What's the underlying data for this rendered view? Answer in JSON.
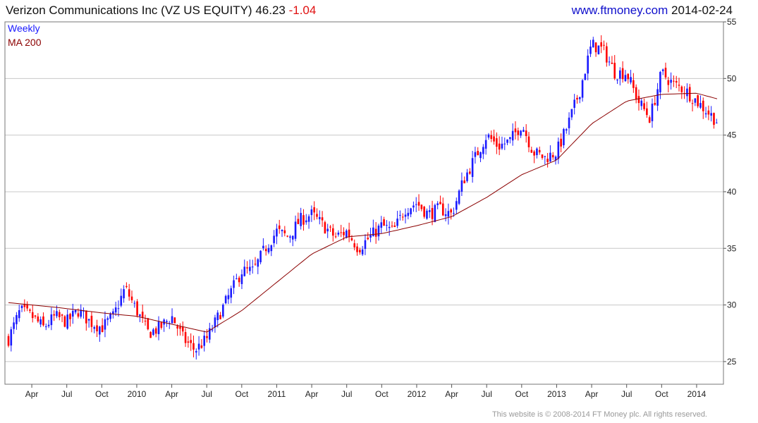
{
  "header": {
    "company": "Verizon Communications Inc",
    "ticker": "(VZ US EQUITY)",
    "price": "46.23",
    "change": "-1.04",
    "site": "www.ftmoney.com",
    "date": "2014-02-24"
  },
  "footer": "This website is © 2008-2014 FT Money plc. All rights reserved.",
  "colors": {
    "up": "#1a1aff",
    "down": "#ff0000",
    "ma": "#8b0000",
    "grid": "#c8c8c8"
  },
  "chart_data": {
    "type": "candlestick",
    "interval": "Weekly",
    "legend": [
      "Weekly",
      "MA 200"
    ],
    "y_axis": {
      "position": "right",
      "min": 23,
      "max": 55,
      "ticks": [
        25,
        30,
        35,
        40,
        45,
        50,
        55
      ]
    },
    "x_ticks": [
      "Apr",
      "Jul",
      "Oct",
      "2010",
      "Apr",
      "Jul",
      "Oct",
      "2011",
      "Apr",
      "Jul",
      "Oct",
      "2012",
      "Apr",
      "Jul",
      "Oct",
      "2013",
      "Apr",
      "Jul",
      "Oct",
      "2014"
    ],
    "x_range": [
      "2009-02",
      "2014-02-24"
    ],
    "close_anchors": [
      [
        "2009-02",
        27.0
      ],
      [
        "2009-03",
        29.5
      ],
      [
        "2009-04",
        29.0
      ],
      [
        "2009-05",
        28.0
      ],
      [
        "2009-06",
        29.0
      ],
      [
        "2009-07",
        28.5
      ],
      [
        "2009-08",
        29.5
      ],
      [
        "2009-09",
        28.5
      ],
      [
        "2009-10",
        28.0
      ],
      [
        "2009-11",
        29.0
      ],
      [
        "2009-12",
        31.5
      ],
      [
        "2010-01",
        29.5
      ],
      [
        "2010-02",
        27.5
      ],
      [
        "2010-03",
        28.0
      ],
      [
        "2010-04",
        29.0
      ],
      [
        "2010-05",
        27.0
      ],
      [
        "2010-06",
        26.0
      ],
      [
        "2010-07",
        27.0
      ],
      [
        "2010-08",
        29.0
      ],
      [
        "2010-09",
        31.0
      ],
      [
        "2010-10",
        33.0
      ],
      [
        "2010-11",
        33.0
      ],
      [
        "2010-12",
        35.0
      ],
      [
        "2011-01",
        36.5
      ],
      [
        "2011-02",
        36.0
      ],
      [
        "2011-03",
        37.5
      ],
      [
        "2011-04",
        38.0
      ],
      [
        "2011-05",
        37.0
      ],
      [
        "2011-06",
        36.0
      ],
      [
        "2011-07",
        36.5
      ],
      [
        "2011-08",
        35.0
      ],
      [
        "2011-09",
        36.0
      ],
      [
        "2011-10",
        37.0
      ],
      [
        "2011-11",
        36.5
      ],
      [
        "2011-12",
        38.5
      ],
      [
        "2012-01",
        39.0
      ],
      [
        "2012-02",
        38.0
      ],
      [
        "2012-03",
        38.5
      ],
      [
        "2012-04",
        38.0
      ],
      [
        "2012-05",
        41.0
      ],
      [
        "2012-06",
        43.0
      ],
      [
        "2012-07",
        45.0
      ],
      [
        "2012-08",
        44.0
      ],
      [
        "2012-09",
        44.5
      ],
      [
        "2012-10",
        46.0
      ],
      [
        "2012-11",
        43.5
      ],
      [
        "2012-12",
        43.0
      ],
      [
        "2013-01",
        43.5
      ],
      [
        "2013-02",
        46.0
      ],
      [
        "2013-03",
        49.0
      ],
      [
        "2013-04",
        53.0
      ],
      [
        "2013-05",
        52.5
      ],
      [
        "2013-06",
        50.5
      ],
      [
        "2013-07",
        50.5
      ],
      [
        "2013-08",
        48.0
      ],
      [
        "2013-09",
        46.5
      ],
      [
        "2013-10",
        50.5
      ],
      [
        "2013-11",
        49.5
      ],
      [
        "2013-12",
        49.0
      ],
      [
        "2014-01",
        48.0
      ],
      [
        "2014-02-24",
        46.23
      ]
    ],
    "ma200_anchors": [
      [
        "2009-02",
        30.2
      ],
      [
        "2009-06",
        29.8
      ],
      [
        "2009-10",
        29.3
      ],
      [
        "2010-01",
        29.0
      ],
      [
        "2010-04",
        28.3
      ],
      [
        "2010-07",
        27.6
      ],
      [
        "2010-10",
        29.5
      ],
      [
        "2011-01",
        32.0
      ],
      [
        "2011-04",
        34.5
      ],
      [
        "2011-07",
        36.0
      ],
      [
        "2011-10",
        36.3
      ],
      [
        "2012-01",
        37.0
      ],
      [
        "2012-04",
        37.8
      ],
      [
        "2012-07",
        39.5
      ],
      [
        "2012-10",
        41.5
      ],
      [
        "2013-01",
        42.8
      ],
      [
        "2013-04",
        46.0
      ],
      [
        "2013-07",
        48.0
      ],
      [
        "2013-10",
        48.6
      ],
      [
        "2014-01",
        48.7
      ],
      [
        "2014-02-24",
        48.2
      ]
    ]
  }
}
